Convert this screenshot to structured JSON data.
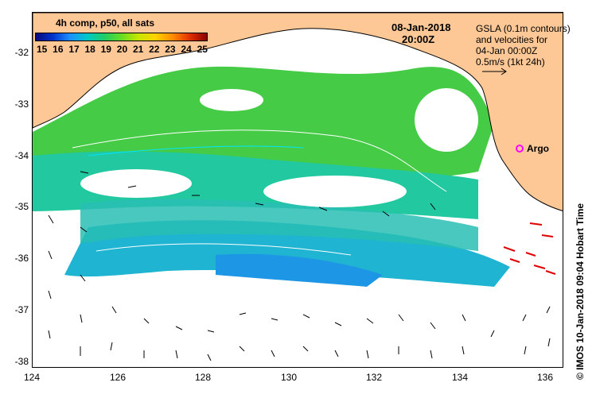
{
  "colorbar": {
    "title": "4h comp, p50, all sats",
    "ticks": [
      "15",
      "16",
      "17",
      "18",
      "19",
      "20",
      "21",
      "22",
      "23",
      "24",
      "25"
    ]
  },
  "timestamp": {
    "date": "08-Jan-2018",
    "time": "20:00Z"
  },
  "legend": {
    "line1": "GSLA (0.1m contours)",
    "line2": "and velocities for",
    "line3": "04-Jan 00:00Z",
    "line4": "0.5m/s (1kt 24h)"
  },
  "argo": {
    "label": "Argo",
    "color": "#ff00ff"
  },
  "axes": {
    "y_labels": [
      "-32",
      "-33",
      "-34",
      "-35",
      "-36",
      "-37",
      "-38"
    ],
    "x_labels": [
      "124",
      "126",
      "128",
      "130",
      "132",
      "134",
      "136"
    ]
  },
  "credit": "© IMOS 10-Jan-2018 09:04 Hobart Time",
  "colors": {
    "land": "#fdc896",
    "ocean": "#ffffff",
    "sst_warm": "#3cc83c",
    "sst_cool": "#1ec8c8"
  }
}
